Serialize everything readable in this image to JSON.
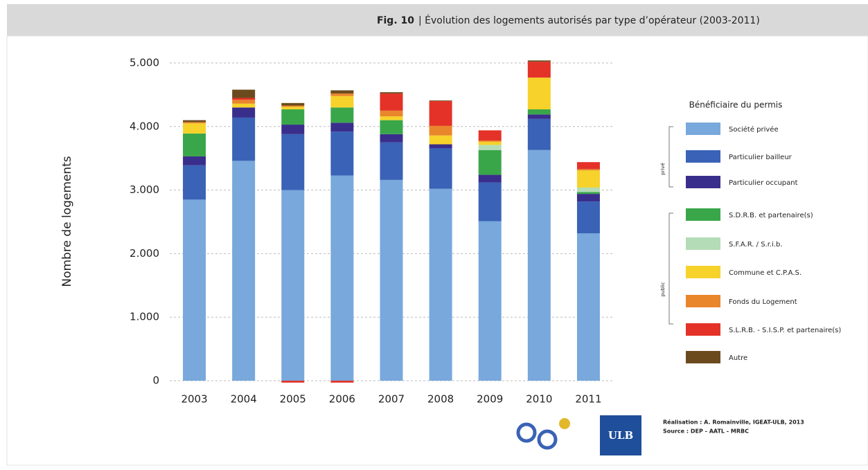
{
  "chart_data": {
    "type": "stacked_bar",
    "figure_label": "Fig. 10",
    "title": "| Évolution des logements autorisés par type d’opérateur (2003-2011)",
    "y_label": "Nombre de logements",
    "categories": [
      "2003",
      "2004",
      "2005",
      "2006",
      "2007",
      "2008",
      "2009",
      "2010",
      "2011"
    ],
    "series": [
      {
        "name": "Société privée",
        "color": "#78a8dc",
        "values": [
          2850,
          3460,
          3000,
          3230,
          3160,
          3020,
          2510,
          3630,
          2320
        ]
      },
      {
        "name": "Particulier bailleur",
        "color": "#3a62b6",
        "values": [
          540,
          680,
          880,
          690,
          590,
          640,
          610,
          490,
          500
        ]
      },
      {
        "name": "Particulier occupant",
        "color": "#3a2e8c",
        "values": [
          140,
          160,
          150,
          140,
          130,
          60,
          120,
          70,
          120
        ]
      },
      {
        "name": "S.D.R.B. et partenaire(s)",
        "color": "#3aa64a",
        "values": [
          360,
          0,
          240,
          240,
          220,
          0,
          390,
          80,
          30
        ]
      },
      {
        "name": "S.F.A.R. / S.r.i.b.",
        "color": "#b4dcb6",
        "values": [
          0,
          0,
          0,
          0,
          0,
          0,
          80,
          0,
          70
        ]
      },
      {
        "name": "Commune et C.P.A.S.",
        "color": "#f6d22a",
        "values": [
          160,
          60,
          40,
          180,
          60,
          140,
          50,
          500,
          270
        ]
      },
      {
        "name": "Fonds du Logement",
        "color": "#e9862b",
        "values": [
          20,
          60,
          20,
          40,
          90,
          150,
          20,
          0,
          20
        ]
      },
      {
        "name": "S.L.R.B. - S.I.S.P. et partenaire(s)",
        "color": "#e43228",
        "values": [
          0,
          30,
          -30,
          -30,
          270,
          390,
          160,
          250,
          110
        ]
      },
      {
        "name": "Autre",
        "color": "#6b4b1e",
        "values": [
          30,
          130,
          40,
          50,
          20,
          10,
          0,
          20,
          0
        ]
      }
    ],
    "ylim": [
      0,
      5000
    ],
    "yticks": [
      0,
      {
        "value": 1000,
        "label": "1.000"
      },
      {
        "value": 2000,
        "label": "2.000"
      },
      {
        "value": 3000,
        "label": "3.000"
      },
      {
        "value": 4000,
        "label": "4.000"
      },
      {
        "value": 5000,
        "label": "5.000"
      }
    ],
    "grid": true,
    "legend_title": "Bénéficiaire du permis",
    "legend_groups": [
      "privé",
      "public"
    ],
    "credits": [
      "Réalisation : A. Romainville, IGEAT-ULB, 2013",
      "Source : DEP - AATL - MRBC"
    ],
    "logos": [
      "ULB"
    ]
  }
}
